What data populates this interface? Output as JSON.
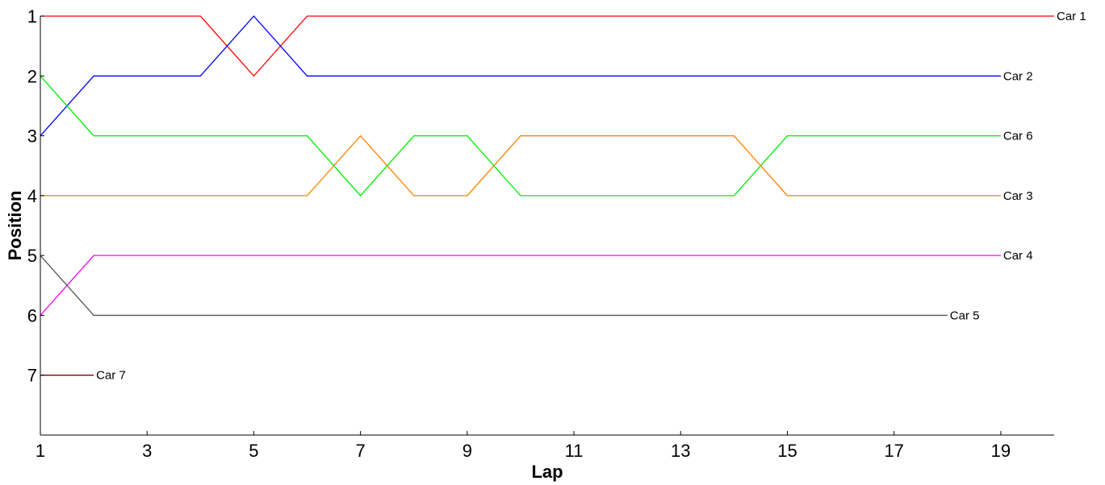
{
  "chart_data": {
    "type": "line",
    "title": "",
    "xlabel": "Lap",
    "ylabel": "Position",
    "xlim": [
      1,
      20
    ],
    "ylim": [
      1,
      8
    ],
    "y_reversed": true,
    "grid": false,
    "legend": "none (series labeled at line ends)",
    "xticks": [
      "1",
      "3",
      "5",
      "7",
      "9",
      "11",
      "13",
      "15",
      "17",
      "19"
    ],
    "yticks": [
      "1",
      "2",
      "3",
      "4",
      "5",
      "6",
      "7"
    ],
    "series": [
      {
        "name": "Car 1",
        "color": "#ff0000",
        "x": [
          1,
          2,
          3,
          4,
          5,
          6,
          7,
          8,
          9,
          10,
          11,
          12,
          13,
          14,
          15,
          16,
          17,
          18,
          19,
          20
        ],
        "y": [
          1,
          1,
          1,
          1,
          2,
          1,
          1,
          1,
          1,
          1,
          1,
          1,
          1,
          1,
          1,
          1,
          1,
          1,
          1,
          1
        ]
      },
      {
        "name": "Car 2",
        "color": "#0000ff",
        "x": [
          1,
          2,
          3,
          4,
          5,
          6,
          7,
          8,
          9,
          10,
          11,
          12,
          13,
          14,
          15,
          16,
          17,
          18,
          19
        ],
        "y": [
          3,
          2,
          2,
          2,
          1,
          2,
          2,
          2,
          2,
          2,
          2,
          2,
          2,
          2,
          2,
          2,
          2,
          2,
          2
        ]
      },
      {
        "name": "Car 6",
        "color": "#00ee00",
        "x": [
          1,
          2,
          3,
          4,
          5,
          6,
          7,
          8,
          9,
          10,
          11,
          12,
          13,
          14,
          15,
          16,
          17,
          18,
          19
        ],
        "y": [
          2,
          3,
          3,
          3,
          3,
          3,
          4,
          3,
          3,
          4,
          4,
          4,
          4,
          4,
          3,
          3,
          3,
          3,
          3
        ]
      },
      {
        "name": "Car 3",
        "color": "#ff8000",
        "x": [
          1,
          2,
          3,
          4,
          5,
          6,
          7,
          8,
          9,
          10,
          11,
          12,
          13,
          14,
          15,
          16,
          17,
          18,
          19
        ],
        "y": [
          4,
          4,
          4,
          4,
          4,
          4,
          3,
          4,
          4,
          3,
          3,
          3,
          3,
          3,
          4,
          4,
          4,
          4,
          4
        ]
      },
      {
        "name": "Car 4",
        "color": "#ff00ff",
        "x": [
          1,
          2,
          3,
          4,
          5,
          6,
          7,
          8,
          9,
          10,
          11,
          12,
          13,
          14,
          15,
          16,
          17,
          18,
          19
        ],
        "y": [
          6,
          5,
          5,
          5,
          5,
          5,
          5,
          5,
          5,
          5,
          5,
          5,
          5,
          5,
          5,
          5,
          5,
          5,
          5
        ]
      },
      {
        "name": "Car 5",
        "color": "#555555",
        "x": [
          1,
          2,
          3,
          4,
          5,
          6,
          7,
          8,
          9,
          10,
          11,
          12,
          13,
          14,
          15,
          16,
          17,
          18
        ],
        "y": [
          5,
          6,
          6,
          6,
          6,
          6,
          6,
          6,
          6,
          6,
          6,
          6,
          6,
          6,
          6,
          6,
          6,
          6
        ]
      },
      {
        "name": "Car 7",
        "color": "#800000",
        "x": [
          1,
          2
        ],
        "y": [
          7,
          7
        ]
      }
    ]
  }
}
